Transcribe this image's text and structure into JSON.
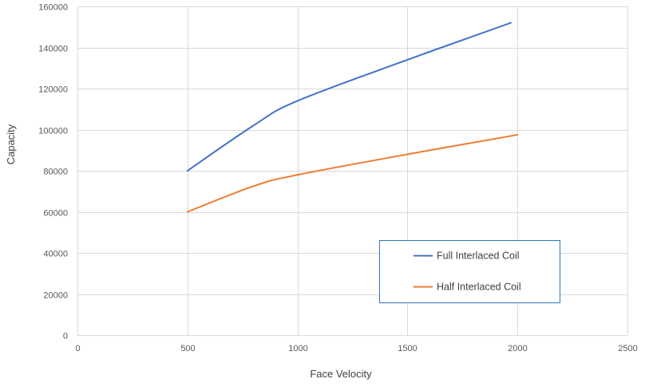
{
  "chart_data": {
    "type": "line",
    "title": "",
    "xlabel": "Face Velocity",
    "ylabel": "Capacity",
    "xlim": [
      0,
      2500
    ],
    "ylim": [
      0,
      160000
    ],
    "x_ticks": [
      0,
      500,
      1000,
      1500,
      2000,
      2500
    ],
    "y_ticks": [
      0,
      20000,
      40000,
      60000,
      80000,
      100000,
      120000,
      140000,
      160000
    ],
    "grid": true,
    "legend_position": "bottom-right",
    "series": [
      {
        "name": "Full Interlaced Coil",
        "color": "#4472C4",
        "x": [
          500,
          800,
          1000,
          1500,
          1970
        ],
        "y": [
          80000,
          102000,
          114000,
          134000,
          152000
        ]
      },
      {
        "name": "Half Interlaced Coil",
        "color": "#ED7D31",
        "x": [
          500,
          800,
          1000,
          1500,
          2000
        ],
        "y": [
          60000,
          72500,
          78000,
          88000,
          97500
        ]
      }
    ]
  }
}
